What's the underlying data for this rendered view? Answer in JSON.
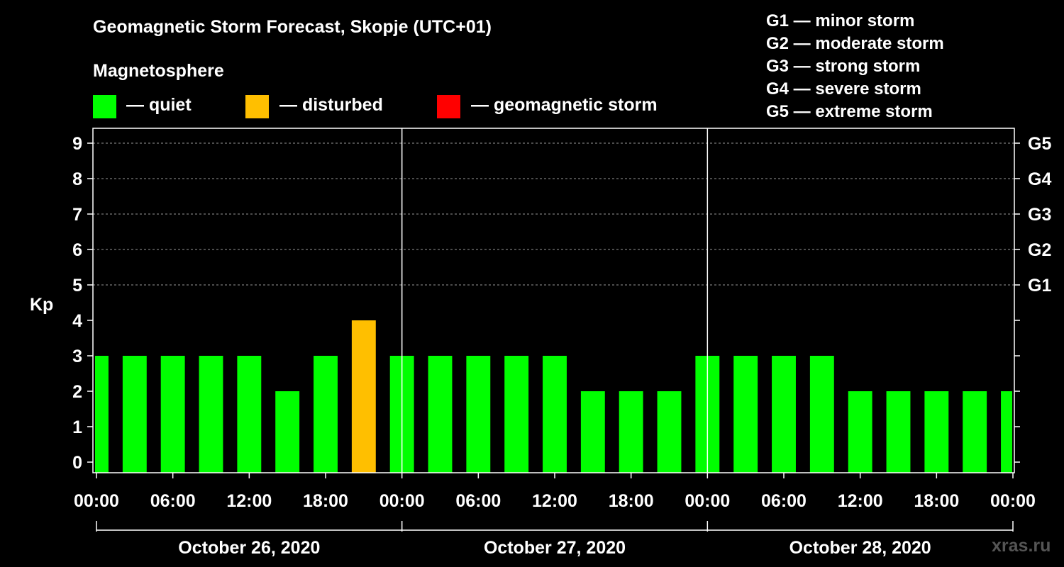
{
  "header": {
    "title": "Geomagnetic Storm Forecast, Skopje (UTC+01)",
    "subtitle": "Magnetosphere"
  },
  "legend": [
    {
      "label": "— quiet",
      "color": "#00ff00"
    },
    {
      "label": "— disturbed",
      "color": "#ffbf00"
    },
    {
      "label": "— geomagnetic storm",
      "color": "#ff0000"
    }
  ],
  "g_scale": [
    "G1 — minor storm",
    "G2 — moderate storm",
    "G3 — strong storm",
    "G4 — severe storm",
    "G5 — extreme storm"
  ],
  "watermark": "xras.ru",
  "chart_data": {
    "type": "bar",
    "title": "Geomagnetic Storm Forecast, Skopje (UTC+01)",
    "ylabel": "Kp",
    "ylim": [
      0,
      9
    ],
    "yticks": [
      "0",
      "1",
      "2",
      "3",
      "4",
      "5",
      "6",
      "7",
      "8",
      "9"
    ],
    "right_ticks": [
      {
        "kp": 5,
        "label": "G1"
      },
      {
        "kp": 6,
        "label": "G2"
      },
      {
        "kp": 7,
        "label": "G3"
      },
      {
        "kp": 8,
        "label": "G4"
      },
      {
        "kp": 9,
        "label": "G5"
      }
    ],
    "x_hour_range": [
      0,
      72
    ],
    "bar_hour_starts": [
      -1,
      2,
      5,
      8,
      11,
      14,
      17,
      20,
      23,
      26,
      29,
      32,
      35,
      38,
      41,
      44,
      47,
      50,
      53,
      56,
      59,
      62,
      65,
      68,
      71
    ],
    "bar_hour_ends": [
      1,
      4,
      7,
      10,
      13,
      16,
      19,
      22,
      25,
      28,
      31,
      34,
      37,
      40,
      43,
      46,
      49,
      52,
      55,
      58,
      61,
      64,
      67,
      70,
      72
    ],
    "values": [
      3,
      3,
      3,
      3,
      3,
      2,
      3,
      4,
      3,
      3,
      3,
      3,
      3,
      2,
      2,
      2,
      3,
      3,
      3,
      3,
      2,
      2,
      2,
      2,
      2
    ],
    "status_colors": {
      "quiet": "#00ff00",
      "disturbed": "#ffbf00",
      "storm": "#ff0000"
    },
    "disturbed_threshold": 4,
    "storm_threshold": 5,
    "x_tick_hours": [
      0,
      6,
      12,
      18,
      24,
      30,
      36,
      42,
      48,
      54,
      60,
      66,
      72
    ],
    "x_tick_labels": [
      "00:00",
      "06:00",
      "12:00",
      "18:00",
      "00:00",
      "06:00",
      "12:00",
      "18:00",
      "00:00",
      "06:00",
      "12:00",
      "18:00",
      "00:00"
    ],
    "day_separator_hours": [
      24,
      48
    ],
    "days": [
      "October 26, 2020",
      "October 27, 2020",
      "October 28, 2020"
    ]
  }
}
